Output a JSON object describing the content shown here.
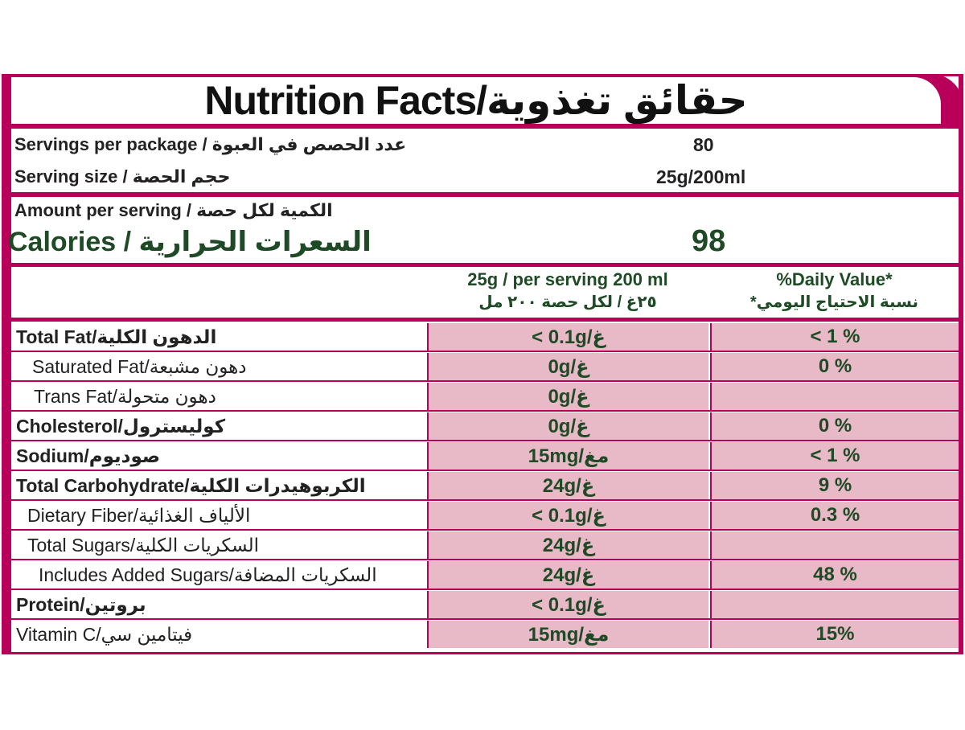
{
  "title": "Nutrition Facts/حقائق تغذوية",
  "servings_per_package": {
    "label": "Servings per package / عدد الحصص في العبوة",
    "value": "80"
  },
  "serving_size": {
    "label": "Serving size / حجم الحصة",
    "value": "25g/200ml"
  },
  "amount_per_serving": "Amount per serving / الكمية لكل حصة",
  "calories": {
    "label": "Calories / السعرات الحرارية",
    "value": "98"
  },
  "columns": {
    "per_serving_en": "25g / per serving 200 ml",
    "per_serving_ar": "٢٥غ / لكل حصة ٢٠٠ مل",
    "dv_en": "%Daily Value*",
    "dv_ar": "*نسبة الاحتياج اليومي"
  },
  "nutrients": [
    {
      "name": "Total Fat/الدهون الكلية",
      "amount": "< 0.1g/غ",
      "dv": "< 1 %"
    },
    {
      "name": "Saturated Fat/دهون مشبعة",
      "amount": "0g/غ",
      "dv": "0 %"
    },
    {
      "name": "Trans Fat/دهون متحولة",
      "amount": "0g/غ",
      "dv": ""
    },
    {
      "name": "Cholesterol/كوليسترول",
      "amount": "0g/غ",
      "dv": "0 %"
    },
    {
      "name": "Sodium/صوديوم",
      "amount": "15mg/مغ",
      "dv": "< 1 %"
    },
    {
      "name": "Total Carbohydrate/الكربوهيدرات الكلية",
      "amount": "24g/غ",
      "dv": "9 %"
    },
    {
      "name": "Dietary Fiber/الألياف الغذائية",
      "amount": "< 0.1g/غ",
      "dv": "0.3 %"
    },
    {
      "name": "Total Sugars/السكريات الكلية",
      "amount": "24g/غ",
      "dv": ""
    },
    {
      "name": "Includes Added Sugars/السكريات المضافة",
      "amount": "24g/غ",
      "dv": "48 %"
    },
    {
      "name": "Protein/بروتين",
      "amount": "< 0.1g/غ",
      "dv": ""
    },
    {
      "name": "Vitamin C/فيتامين سي",
      "amount": "15mg/مغ",
      "dv": "15%"
    }
  ],
  "colors": {
    "border": "#b8005a",
    "cell_fill": "#e8b9c6",
    "text": "#1f4a26"
  }
}
